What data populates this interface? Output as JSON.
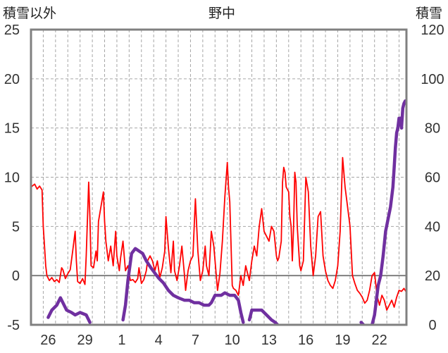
{
  "chart_data": {
    "type": "line",
    "title": "野中",
    "left_axis_label": "積雪以外",
    "right_axis_label": "積雪",
    "left_ylim": [
      -5,
      25
    ],
    "left_ticks": [
      "-5",
      "0",
      "5",
      "10",
      "15",
      "20",
      "25"
    ],
    "right_ylim": [
      0,
      120
    ],
    "right_ticks": [
      "0",
      "20",
      "40",
      "60",
      "80",
      "100",
      "120"
    ],
    "x_categories": [
      "26",
      "29",
      "1",
      "4",
      "7",
      "10",
      "13",
      "16",
      "19",
      "22"
    ],
    "x_tick_positions": [
      1.4,
      4.4,
      7.4,
      10.4,
      13.4,
      16.4,
      19.4,
      22.4,
      25.4,
      28.4
    ],
    "x_range": [
      0,
      30.6
    ],
    "grid": true,
    "colors": {
      "temperature": "#ff0000",
      "snow": "#7030a0",
      "zero_line": "#808080",
      "frame": "#808080",
      "grid": "#a6a6a6"
    },
    "series": [
      {
        "axis": "left",
        "style": "thin",
        "points": [
          [
            0.0,
            9.0
          ],
          [
            0.3,
            9.3
          ],
          [
            0.5,
            8.8
          ],
          [
            0.7,
            9.1
          ],
          [
            0.9,
            8.7
          ],
          [
            1.0,
            5.0
          ],
          [
            1.1,
            3.0
          ],
          [
            1.2,
            1.0
          ],
          [
            1.3,
            0.0
          ],
          [
            1.5,
            -0.5
          ],
          [
            1.7,
            -0.2
          ],
          [
            1.9,
            -0.6
          ],
          [
            2.1,
            -0.4
          ],
          [
            2.3,
            -0.7
          ],
          [
            2.5,
            0.8
          ],
          [
            2.6,
            0.6
          ],
          [
            2.8,
            -0.3
          ],
          [
            3.0,
            0.2
          ],
          [
            3.2,
            0.6
          ],
          [
            3.4,
            2.5
          ],
          [
            3.6,
            4.5
          ],
          [
            3.7,
            1.5
          ],
          [
            3.8,
            -0.6
          ],
          [
            4.0,
            -0.8
          ],
          [
            4.2,
            -0.3
          ],
          [
            4.4,
            -0.9
          ],
          [
            4.5,
            2.0
          ],
          [
            4.7,
            9.5
          ],
          [
            4.8,
            6.0
          ],
          [
            4.9,
            1.0
          ],
          [
            5.1,
            0.8
          ],
          [
            5.3,
            2.5
          ],
          [
            5.4,
            1.5
          ],
          [
            5.5,
            5.5
          ],
          [
            5.7,
            7.0
          ],
          [
            5.9,
            8.5
          ],
          [
            6.0,
            5.5
          ],
          [
            6.1,
            3.5
          ],
          [
            6.3,
            1.5
          ],
          [
            6.5,
            3.0
          ],
          [
            6.7,
            1.0
          ],
          [
            6.9,
            4.5
          ],
          [
            7.0,
            2.0
          ],
          [
            7.2,
            0.5
          ],
          [
            7.3,
            1.8
          ],
          [
            7.5,
            3.5
          ],
          [
            7.7,
            0.5
          ],
          [
            7.9,
            1.0
          ],
          [
            8.0,
            0.2
          ],
          [
            8.1,
            -0.5
          ],
          [
            8.3,
            -0.4
          ],
          [
            8.5,
            -0.7
          ],
          [
            8.7,
            -0.3
          ],
          [
            8.8,
            0.8
          ],
          [
            9.0,
            -0.8
          ],
          [
            9.2,
            -0.4
          ],
          [
            9.4,
            0.5
          ],
          [
            9.5,
            1.5
          ],
          [
            9.7,
            2.0
          ],
          [
            9.9,
            1.5
          ],
          [
            10.1,
            0.5
          ],
          [
            10.3,
            1.5
          ],
          [
            10.5,
            -0.2
          ],
          [
            10.7,
            0.8
          ],
          [
            10.9,
            2.5
          ],
          [
            11.0,
            6.0
          ],
          [
            11.2,
            2.8
          ],
          [
            11.4,
            0.3
          ],
          [
            11.6,
            3.5
          ],
          [
            11.7,
            0.5
          ],
          [
            11.9,
            -0.5
          ],
          [
            12.1,
            1.0
          ],
          [
            12.3,
            3.0
          ],
          [
            12.5,
            0.2
          ],
          [
            12.6,
            -1.5
          ],
          [
            12.8,
            0.5
          ],
          [
            13.0,
            1.5
          ],
          [
            13.2,
            2.0
          ],
          [
            13.3,
            5.0
          ],
          [
            13.4,
            7.8
          ],
          [
            13.6,
            2.5
          ],
          [
            13.8,
            -0.5
          ],
          [
            14.0,
            0.5
          ],
          [
            14.2,
            3.0
          ],
          [
            14.3,
            1.0
          ],
          [
            14.5,
            0.0
          ],
          [
            14.7,
            4.5
          ],
          [
            14.9,
            3.0
          ],
          [
            15.0,
            1.5
          ],
          [
            15.2,
            -1.5
          ],
          [
            15.4,
            0.2
          ],
          [
            15.6,
            3.5
          ],
          [
            15.8,
            8.0
          ],
          [
            16.0,
            11.5
          ],
          [
            16.1,
            9.0
          ],
          [
            16.2,
            7.5
          ],
          [
            16.4,
            -1.0
          ],
          [
            16.5,
            -1.3
          ],
          [
            16.7,
            -1.5
          ],
          [
            16.9,
            -2.0
          ],
          [
            17.1,
            0.0
          ],
          [
            17.3,
            -1.0
          ],
          [
            17.5,
            1.0
          ],
          [
            17.8,
            -0.5
          ],
          [
            18.0,
            1.5
          ],
          [
            18.2,
            3.0
          ],
          [
            18.4,
            2.0
          ],
          [
            18.6,
            5.0
          ],
          [
            18.8,
            6.8
          ],
          [
            19.0,
            4.5
          ],
          [
            19.2,
            4.0
          ],
          [
            19.4,
            3.5
          ],
          [
            19.6,
            5.0
          ],
          [
            19.8,
            4.5
          ],
          [
            20.0,
            2.0
          ],
          [
            20.1,
            1.5
          ],
          [
            20.2,
            1.8
          ],
          [
            20.4,
            3.5
          ],
          [
            20.5,
            9.5
          ],
          [
            20.6,
            11.0
          ],
          [
            20.7,
            10.5
          ],
          [
            20.8,
            9.0
          ],
          [
            21.0,
            8.5
          ],
          [
            21.1,
            6.0
          ],
          [
            21.2,
            5.0
          ],
          [
            21.3,
            1.5
          ],
          [
            21.4,
            5.0
          ],
          [
            21.5,
            10.5
          ],
          [
            21.6,
            9.5
          ],
          [
            21.7,
            5.0
          ],
          [
            21.8,
            3.0
          ],
          [
            21.9,
            1.0
          ],
          [
            22.0,
            0.5
          ],
          [
            22.2,
            1.5
          ],
          [
            22.4,
            10.0
          ],
          [
            22.6,
            8.5
          ],
          [
            22.8,
            3.0
          ],
          [
            23.0,
            0.0
          ],
          [
            23.2,
            2.0
          ],
          [
            23.4,
            6.0
          ],
          [
            23.6,
            6.5
          ],
          [
            23.8,
            2.0
          ],
          [
            24.0,
            0.5
          ],
          [
            24.2,
            -0.5
          ],
          [
            24.4,
            -1.0
          ],
          [
            24.6,
            -1.3
          ],
          [
            24.8,
            -0.5
          ],
          [
            25.0,
            1.0
          ],
          [
            25.2,
            4.5
          ],
          [
            25.4,
            12.0
          ],
          [
            25.6,
            9.0
          ],
          [
            25.8,
            7.0
          ],
          [
            26.0,
            5.0
          ],
          [
            26.2,
            0.0
          ],
          [
            26.4,
            -0.8
          ],
          [
            26.6,
            -1.5
          ],
          [
            26.8,
            -1.8
          ],
          [
            27.0,
            -2.2
          ],
          [
            27.2,
            -2.8
          ],
          [
            27.4,
            -2.5
          ],
          [
            27.6,
            -1.5
          ],
          [
            27.8,
            0.0
          ],
          [
            28.0,
            0.3
          ],
          [
            28.2,
            -2.0
          ],
          [
            28.4,
            -3.0
          ],
          [
            28.6,
            -2.0
          ],
          [
            28.8,
            -2.5
          ],
          [
            29.0,
            -3.5
          ],
          [
            29.2,
            -3.0
          ],
          [
            29.4,
            -2.5
          ],
          [
            29.6,
            -3.2
          ],
          [
            29.8,
            -2.2
          ],
          [
            30.0,
            -1.5
          ],
          [
            30.2,
            -1.6
          ],
          [
            30.4,
            -1.3
          ],
          [
            30.6,
            -1.7
          ]
        ]
      },
      {
        "axis": "right",
        "style": "thick",
        "points": [
          [
            1.4,
            3
          ],
          [
            1.7,
            6
          ],
          [
            2.1,
            8
          ],
          [
            2.4,
            11
          ],
          [
            2.6,
            9
          ],
          [
            2.9,
            6
          ],
          [
            3.3,
            5
          ],
          [
            3.6,
            4
          ],
          [
            4.0,
            5
          ],
          [
            4.5,
            4
          ],
          [
            4.8,
            1
          ]
        ]
      },
      {
        "axis": "right",
        "style": "thick",
        "points": [
          [
            7.5,
            2
          ],
          [
            7.7,
            8
          ],
          [
            7.9,
            18
          ],
          [
            8.2,
            29
          ],
          [
            8.5,
            31
          ],
          [
            8.8,
            30
          ],
          [
            9.1,
            29
          ],
          [
            9.4,
            26
          ],
          [
            9.8,
            23
          ],
          [
            10.1,
            21
          ],
          [
            10.4,
            19
          ],
          [
            10.8,
            17
          ],
          [
            11.2,
            14
          ],
          [
            11.6,
            12
          ],
          [
            12.0,
            11
          ],
          [
            12.5,
            10
          ],
          [
            12.9,
            10
          ],
          [
            13.3,
            9
          ],
          [
            13.7,
            9
          ],
          [
            14.1,
            8
          ],
          [
            14.5,
            8
          ],
          [
            14.7,
            9
          ],
          [
            15.0,
            12
          ],
          [
            15.5,
            12
          ],
          [
            15.8,
            13
          ],
          [
            16.2,
            12
          ],
          [
            16.6,
            12
          ],
          [
            16.9,
            10
          ],
          [
            17.1,
            5
          ],
          [
            17.3,
            1
          ]
        ]
      },
      {
        "axis": "right",
        "style": "thick",
        "points": [
          [
            17.8,
            2
          ],
          [
            18.0,
            6
          ],
          [
            18.4,
            6
          ],
          [
            18.8,
            6
          ],
          [
            19.2,
            4
          ],
          [
            19.6,
            2
          ],
          [
            19.9,
            1
          ],
          [
            20.1,
            0
          ]
        ]
      },
      {
        "axis": "right",
        "style": "thick",
        "points": [
          [
            26.9,
            1
          ],
          [
            27.1,
            0
          ]
        ]
      },
      {
        "axis": "right",
        "style": "thick",
        "points": [
          [
            27.8,
            0
          ],
          [
            28.0,
            4
          ],
          [
            28.3,
            16
          ],
          [
            28.5,
            20
          ],
          [
            28.7,
            28
          ],
          [
            28.9,
            38
          ],
          [
            29.1,
            43
          ],
          [
            29.3,
            48
          ],
          [
            29.5,
            56
          ],
          [
            29.6,
            64
          ],
          [
            29.7,
            72
          ],
          [
            29.8,
            78
          ],
          [
            29.9,
            80
          ],
          [
            30.0,
            84
          ],
          [
            30.1,
            84
          ],
          [
            30.2,
            80
          ],
          [
            30.3,
            88
          ],
          [
            30.4,
            90
          ],
          [
            30.5,
            91
          ],
          [
            30.6,
            90
          ]
        ]
      }
    ]
  }
}
